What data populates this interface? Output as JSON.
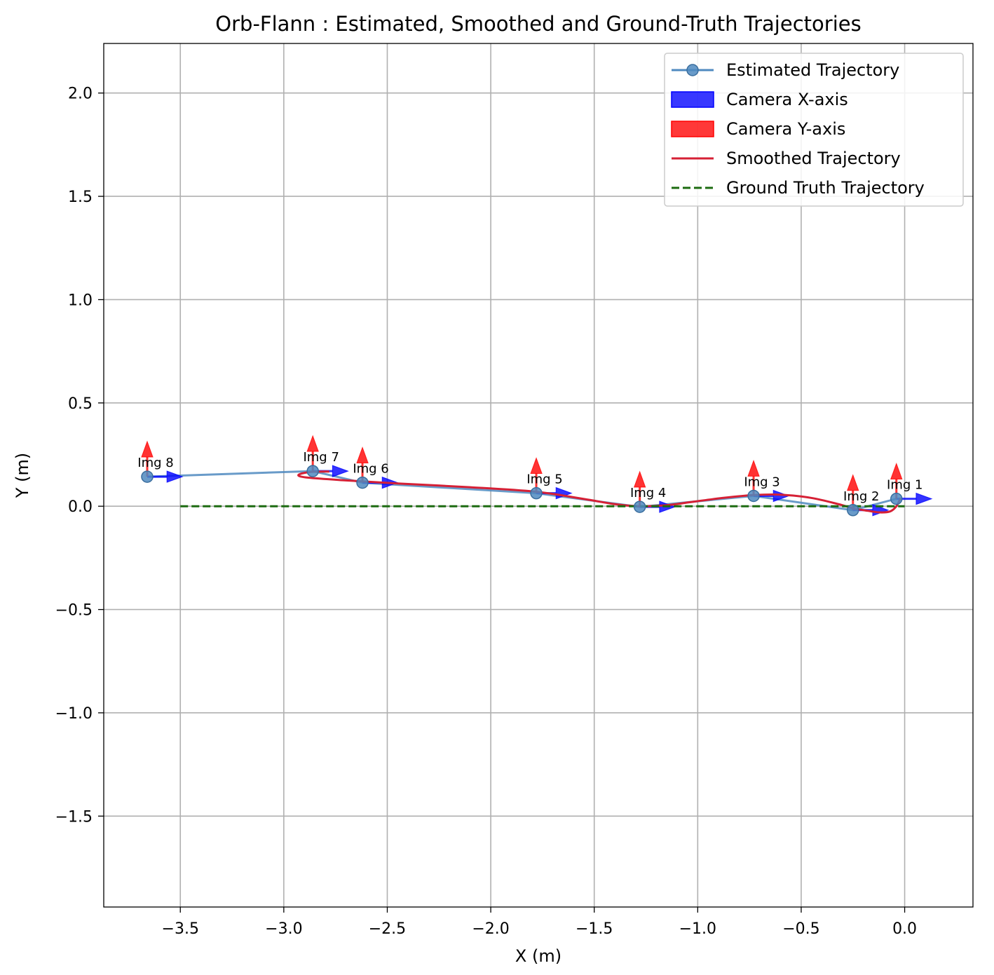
{
  "chart_data": {
    "type": "line",
    "title": "Orb-Flann : Estimated, Smoothed and Ground-Truth Trajectories",
    "xlabel": "X (m)",
    "ylabel": "Y (m)",
    "xlim": [
      -3.87,
      0.33
    ],
    "ylim": [
      -1.94,
      2.24
    ],
    "xticks": [
      -3.5,
      -3.0,
      -2.5,
      -2.0,
      -1.5,
      -1.0,
      -0.5,
      0.0
    ],
    "xtick_labels": [
      "−3.5",
      "−3.0",
      "−2.5",
      "−2.0",
      "−1.5",
      "−1.0",
      "−0.5",
      "0.0"
    ],
    "yticks": [
      -1.5,
      -1.0,
      -0.5,
      0.0,
      0.5,
      1.0,
      1.5,
      2.0
    ],
    "ytick_labels": [
      "−1.5",
      "−1.0",
      "−0.5",
      "0.0",
      "0.5",
      "1.0",
      "1.5",
      "2.0"
    ],
    "grid": true,
    "legend_position": "top-right",
    "legend": [
      {
        "label": "Estimated Trajectory",
        "kind": "line-marker",
        "color": "#4f8ac0"
      },
      {
        "label": "Camera X-axis",
        "kind": "patch",
        "color": "#0000ff"
      },
      {
        "label": "Camera Y-axis",
        "kind": "patch",
        "color": "#ff0000"
      },
      {
        "label": "Smoothed Trajectory",
        "kind": "line",
        "color": "#d62035"
      },
      {
        "label": "Ground Truth Trajectory",
        "kind": "dashed",
        "color": "#1c6b10"
      }
    ],
    "series": [
      {
        "name": "Estimated Trajectory",
        "color": "#4f8ac0",
        "points": [
          {
            "x": -0.04,
            "y": 0.036,
            "label": "Img 1"
          },
          {
            "x": -0.25,
            "y": -0.019,
            "label": "Img 2"
          },
          {
            "x": -0.73,
            "y": 0.05,
            "label": "Img 3"
          },
          {
            "x": -1.28,
            "y": -0.003,
            "label": "Img 4"
          },
          {
            "x": -1.78,
            "y": 0.063,
            "label": "Img 5"
          },
          {
            "x": -2.62,
            "y": 0.114,
            "label": "Img 6"
          },
          {
            "x": -2.86,
            "y": 0.17,
            "label": "Img 7"
          },
          {
            "x": -3.66,
            "y": 0.143,
            "label": "Img 8"
          }
        ]
      },
      {
        "name": "Smoothed Trajectory",
        "color": "#d62035",
        "x": [
          -0.02,
          -0.04,
          -0.07,
          -0.12,
          -0.18,
          -0.25,
          -0.32,
          -0.45,
          -0.6,
          -0.73,
          -0.88,
          -1.02,
          -1.15,
          -1.28,
          -1.4,
          -1.55,
          -1.78,
          -2.1,
          -2.45,
          -2.7,
          -2.88,
          -2.93,
          -2.88,
          -2.78
        ],
        "y": [
          0.04,
          0.0,
          -0.025,
          -0.03,
          -0.022,
          -0.01,
          0.01,
          0.04,
          0.056,
          0.054,
          0.04,
          0.022,
          0.005,
          0.0,
          0.01,
          0.035,
          0.07,
          0.092,
          0.11,
          0.125,
          0.138,
          0.15,
          0.165,
          0.168
        ]
      },
      {
        "name": "Ground Truth Trajectory",
        "color": "#1c6b10",
        "x": [
          -3.5,
          0.0
        ],
        "y": [
          0.0,
          0.0
        ]
      }
    ],
    "camera_axes": {
      "x_axis_color": "#0000ff",
      "y_axis_color": "#ff0000",
      "x_axis_length": 0.17,
      "y_axis_length": 0.17
    }
  }
}
